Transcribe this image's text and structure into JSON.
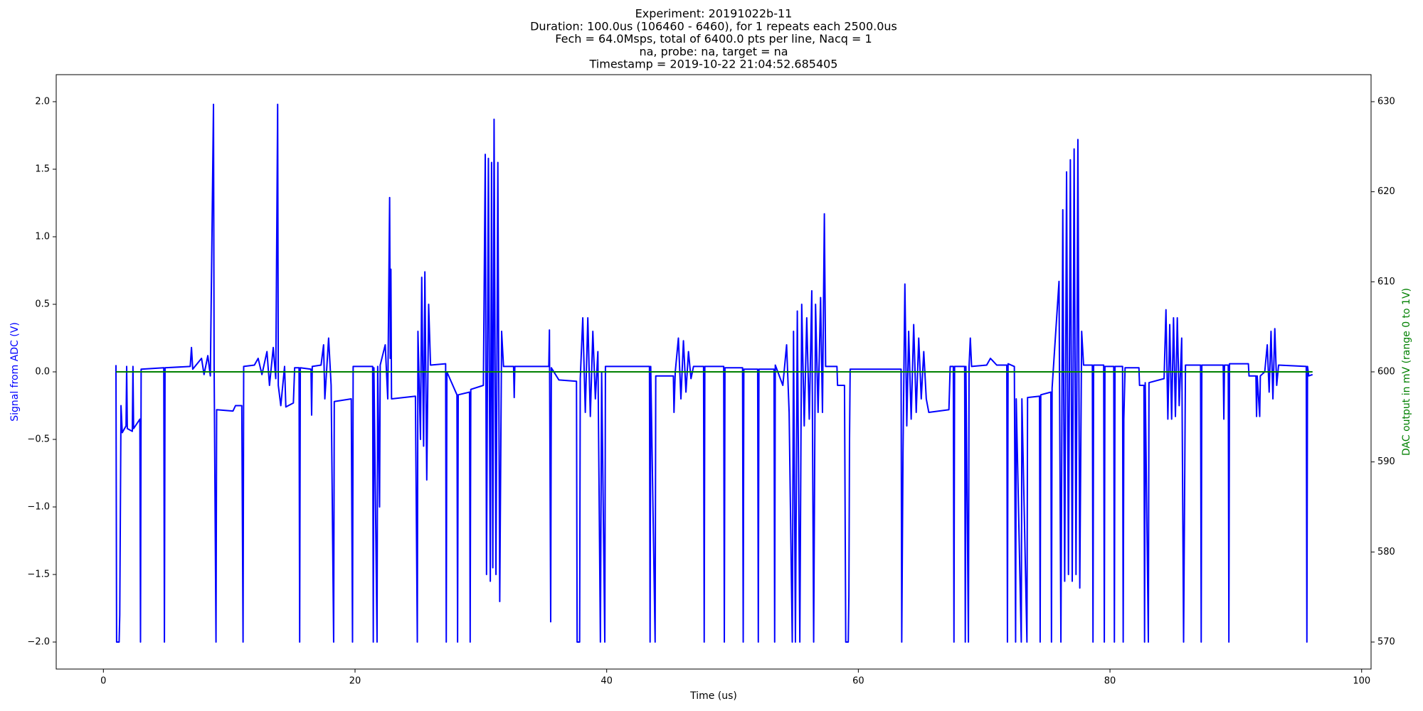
{
  "chart_data": {
    "type": "line",
    "title": [
      "Experiment: 20191022b-11",
      "Duration: 100.0us (106460 - 6460), for 1 repeats each 2500.0us",
      "Fech = 64.0Msps, total of 6400.0 pts per line, Nacq = 1",
      "na, probe: na, target = na",
      "Timestamp = 2019-10-22 21:04:52.685405"
    ],
    "xlabel": "Time (us)",
    "ylabel": "Signal from ADC (V)",
    "y2label": "DAC output in mV (range 0 to 1V)",
    "xlim": [
      -3.75,
      100.75
    ],
    "xticks": [
      0,
      20,
      40,
      60,
      80,
      100
    ],
    "ylim": [
      -2.2,
      2.2
    ],
    "yticks": [
      {
        "value": -2,
        "label": "−2.0"
      },
      {
        "value": -1.5,
        "label": "−1.5"
      },
      {
        "value": -1,
        "label": "−1.0"
      },
      {
        "value": -0.5,
        "label": "−0.5"
      },
      {
        "value": 0,
        "label": "0.0"
      },
      {
        "value": 0.5,
        "label": "0.5"
      },
      {
        "value": 1,
        "label": "1.0"
      },
      {
        "value": 1.5,
        "label": "1.5"
      },
      {
        "value": 2,
        "label": "2.0"
      }
    ],
    "y2lim": [
      567,
      633
    ],
    "y2ticks": [
      570,
      580,
      590,
      600,
      610,
      620,
      630
    ],
    "grid": false,
    "series": [
      {
        "color": "#0000ff",
        "axis": "y",
        "x": [
          1.0,
          1.05,
          1.25,
          1.3,
          1.4,
          1.5,
          1.8,
          1.85,
          1.9,
          2.3,
          2.35,
          2.4,
          2.9,
          2.95,
          3.0,
          4.8,
          4.85,
          4.9,
          6.9,
          7.0,
          7.1,
          7.8,
          8.0,
          8.3,
          8.5,
          8.75,
          8.8,
          8.95,
          9.0,
          10.3,
          10.5,
          11.0,
          11.1,
          11.15,
          12.0,
          12.3,
          12.6,
          13.0,
          13.2,
          13.5,
          13.7,
          13.85,
          13.9,
          14.1,
          14.4,
          14.5,
          15.1,
          15.2,
          15.55,
          15.6,
          15.65,
          16.5,
          16.55,
          16.6,
          17.3,
          17.5,
          17.6,
          17.9,
          18.1,
          18.3,
          18.35,
          19.7,
          19.8,
          19.85,
          21.4,
          21.45,
          21.5,
          21.75,
          21.8,
          21.95,
          22.0,
          22.4,
          22.6,
          22.75,
          22.8,
          22.85,
          22.9,
          24.8,
          24.95,
          25.0,
          25.2,
          25.3,
          25.45,
          25.55,
          25.7,
          25.85,
          26.0,
          27.2,
          27.25,
          27.3,
          28.1,
          28.15,
          28.2,
          29.1,
          29.15,
          29.2,
          30.2,
          30.35,
          30.45,
          30.6,
          30.75,
          30.85,
          30.95,
          31.05,
          31.2,
          31.35,
          31.5,
          31.65,
          31.8,
          32.6,
          32.65,
          32.7,
          35.4,
          35.45,
          35.55,
          35.6,
          36.2,
          37.6,
          37.65,
          37.85,
          37.9,
          38.1,
          38.3,
          38.5,
          38.7,
          38.9,
          39.1,
          39.3,
          39.5,
          39.6,
          39.85,
          39.9,
          43.4,
          43.45,
          43.5,
          43.85,
          43.9,
          45.3,
          45.35,
          45.45,
          45.7,
          45.9,
          46.1,
          46.3,
          46.5,
          46.7,
          46.9,
          47.7,
          47.75,
          47.8,
          49.3,
          49.35,
          49.4,
          50.8,
          50.85,
          50.9,
          52.0,
          52.05,
          52.1,
          53.3,
          53.35,
          53.4,
          54.0,
          54.3,
          54.5,
          54.75,
          54.85,
          55.0,
          55.15,
          55.35,
          55.5,
          55.7,
          55.9,
          56.1,
          56.3,
          56.45,
          56.6,
          56.8,
          57.0,
          57.15,
          57.3,
          57.4,
          58.3,
          58.35,
          58.9,
          59.0,
          59.2,
          59.25,
          59.3,
          59.35,
          63.4,
          63.45,
          63.55,
          63.7,
          63.85,
          64.0,
          64.2,
          64.4,
          64.6,
          64.8,
          65.0,
          65.2,
          65.4,
          65.6,
          67.2,
          67.3,
          67.55,
          67.6,
          67.65,
          68.45,
          68.5,
          68.55,
          68.75,
          68.8,
          68.9,
          69.0,
          70.2,
          70.5,
          71.0,
          71.8,
          71.85,
          71.9,
          72.4,
          72.5,
          72.55,
          72.95,
          73.0,
          73.4,
          73.45,
          74.4,
          74.45,
          74.5,
          75.3,
          75.35,
          75.4,
          75.95,
          76.1,
          76.25,
          76.4,
          76.55,
          76.7,
          76.85,
          77.0,
          77.15,
          77.3,
          77.45,
          77.6,
          77.75,
          77.9,
          78.6,
          78.65,
          78.7,
          79.5,
          79.55,
          79.6,
          80.3,
          80.35,
          80.4,
          81.0,
          81.05,
          81.1,
          81.2,
          82.3,
          82.35,
          82.7,
          82.75,
          82.8,
          83.05,
          83.1,
          84.3,
          84.45,
          84.6,
          84.75,
          84.9,
          85.05,
          85.2,
          85.35,
          85.5,
          85.7,
          85.85,
          86.0,
          87.2,
          87.25,
          87.3,
          89.0,
          89.05,
          89.1,
          89.4,
          89.45,
          89.5,
          91.0,
          91.05,
          91.6,
          91.65,
          91.7,
          91.9,
          91.95,
          92.3,
          92.5,
          92.65,
          92.8,
          92.95,
          93.1,
          93.25,
          93.4,
          95.6,
          95.65,
          95.7,
          95.8,
          96.1
        ],
        "values": [
          0.05,
          -2.0,
          -2.0,
          -1.8,
          -0.25,
          -0.45,
          -0.4,
          0.04,
          -0.42,
          -0.44,
          0.04,
          -0.42,
          -0.35,
          -2.0,
          0.02,
          0.03,
          -2.0,
          0.03,
          0.04,
          0.18,
          0.02,
          0.1,
          -0.02,
          0.12,
          -0.03,
          1.98,
          0.05,
          -2.0,
          -0.28,
          -0.29,
          -0.25,
          -0.25,
          -2.0,
          0.04,
          0.05,
          0.1,
          -0.02,
          0.15,
          -0.1,
          0.18,
          -0.05,
          1.98,
          -0.1,
          -0.25,
          0.04,
          -0.26,
          -0.23,
          0.03,
          0.03,
          -2.0,
          0.03,
          0.02,
          -0.32,
          0.04,
          0.05,
          0.2,
          -0.2,
          0.25,
          -0.1,
          -2.0,
          -0.22,
          -0.2,
          -2.0,
          0.04,
          0.04,
          -2.0,
          0.03,
          -2.0,
          0.04,
          -1.0,
          0.05,
          0.2,
          -0.2,
          1.29,
          0.1,
          0.76,
          -0.2,
          -0.18,
          -2.0,
          0.3,
          -0.5,
          0.7,
          -0.55,
          0.74,
          -0.8,
          0.5,
          0.05,
          0.06,
          -2.0,
          0.0,
          -0.17,
          -2.0,
          -0.17,
          -0.15,
          -2.0,
          -0.13,
          -0.1,
          1.61,
          -1.5,
          1.58,
          -1.55,
          1.55,
          -1.45,
          1.87,
          -1.5,
          1.55,
          -1.7,
          0.3,
          0.04,
          0.04,
          -0.19,
          0.04,
          0.04,
          0.31,
          -1.85,
          0.03,
          -0.06,
          -0.07,
          -2.0,
          -2.0,
          -0.05,
          0.4,
          -0.3,
          0.4,
          -0.33,
          0.3,
          -0.2,
          0.15,
          -2.0,
          0.0,
          -2.0,
          0.04,
          0.04,
          -2.0,
          0.04,
          -2.0,
          -0.03,
          -0.03,
          -0.3,
          0.0,
          0.25,
          -0.2,
          0.23,
          -0.15,
          0.15,
          -0.05,
          0.04,
          0.04,
          -2.0,
          0.04,
          0.04,
          -2.0,
          0.03,
          0.03,
          -2.0,
          0.02,
          0.02,
          -2.0,
          0.02,
          0.02,
          -2.0,
          0.05,
          -0.1,
          0.2,
          -0.3,
          -2.0,
          0.3,
          -2.0,
          0.45,
          -2.0,
          0.5,
          -0.4,
          0.4,
          -0.35,
          0.6,
          -2.0,
          0.5,
          -0.3,
          0.55,
          -0.3,
          1.17,
          0.04,
          0.04,
          -0.1,
          -0.1,
          -2.0,
          -2.0,
          -1.65,
          -0.5,
          0.02,
          0.02,
          -2.0,
          -0.6,
          0.65,
          -0.4,
          0.3,
          -0.35,
          0.35,
          -0.3,
          0.25,
          -0.2,
          0.15,
          -0.2,
          -0.3,
          -0.28,
          0.04,
          0.04,
          -2.0,
          0.04,
          0.04,
          -2.0,
          0.04,
          -2.0,
          0.04,
          0.25,
          0.04,
          0.05,
          0.1,
          0.05,
          0.05,
          -2.0,
          0.06,
          0.04,
          -2.0,
          -0.2,
          -2.0,
          -0.2,
          -2.0,
          -0.19,
          -0.18,
          -2.0,
          -0.17,
          -0.15,
          -2.0,
          -0.12,
          0.67,
          -2.0,
          1.2,
          -1.55,
          1.48,
          -1.5,
          1.57,
          -1.55,
          1.65,
          -1.5,
          1.72,
          -1.6,
          0.3,
          0.05,
          0.05,
          -2.0,
          0.05,
          0.05,
          -2.0,
          0.04,
          0.04,
          -2.0,
          0.04,
          0.04,
          -2.0,
          -0.35,
          0.03,
          0.03,
          -0.1,
          -0.1,
          -2.0,
          -0.08,
          -2.0,
          -0.08,
          -0.05,
          0.46,
          -0.35,
          0.35,
          -0.35,
          0.4,
          -0.33,
          0.4,
          -0.25,
          0.25,
          -2.0,
          0.05,
          0.05,
          -2.0,
          0.05,
          0.05,
          -0.35,
          0.05,
          0.05,
          -2.0,
          0.06,
          0.06,
          -0.03,
          -0.03,
          -0.33,
          -0.03,
          -0.33,
          -0.03,
          0.0,
          0.2,
          -0.15,
          0.3,
          -0.2,
          0.32,
          -0.1,
          0.05,
          0.04,
          -2.0,
          0.04,
          -0.03,
          -0.02
        ]
      },
      {
        "color": "#008000",
        "axis": "y2",
        "x": [
          1.0,
          96.1
        ],
        "values": [
          600,
          600
        ]
      }
    ]
  }
}
